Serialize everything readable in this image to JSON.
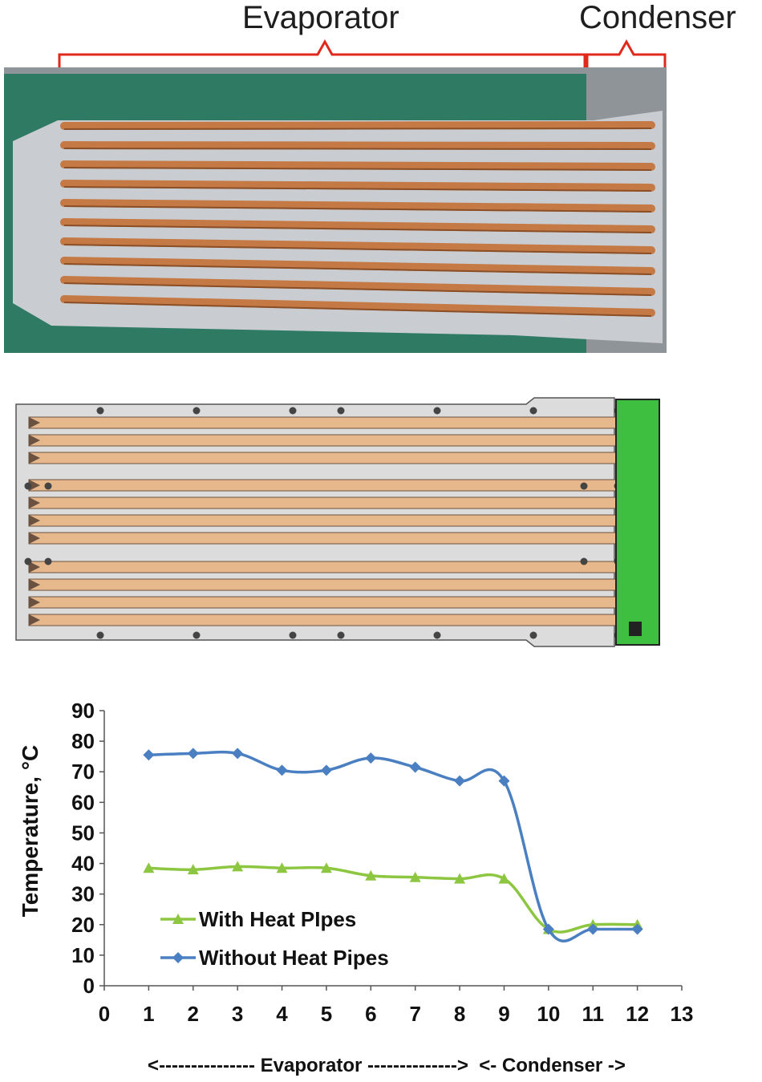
{
  "figure": {
    "evaporator_label": "Evaporator",
    "condenser_label": "Condenser",
    "bracket_color": "#e0281c",
    "photo_colors": {
      "mat": "#2f7a62",
      "plate": "#c9ccd0",
      "pipe": "#c57a45",
      "backdrop": "#8f9498"
    },
    "schematic_colors": {
      "frame": "#dcdcdc",
      "pipe": "#e7b88b",
      "condenser": "#3fbf3f"
    }
  },
  "chart_data": {
    "type": "line",
    "title": "",
    "xlabel": "<--------------- Evaporator -------------->  <- Condenser ->",
    "ylabel": "Temperature, °C",
    "xlim": [
      0,
      13
    ],
    "ylim": [
      0,
      90
    ],
    "xticks": [
      0,
      1,
      2,
      3,
      4,
      5,
      6,
      7,
      8,
      9,
      10,
      11,
      12,
      13
    ],
    "yticks": [
      0,
      10,
      20,
      30,
      40,
      50,
      60,
      70,
      80,
      90
    ],
    "grid": false,
    "legend_position": "bottom-left",
    "series": [
      {
        "name": "With Heat PIpes",
        "color": "#8dc641",
        "marker": "triangle",
        "x": [
          1,
          2,
          3,
          4,
          5,
          6,
          7,
          8,
          9,
          10,
          11,
          12
        ],
        "y": [
          38.5,
          38,
          39,
          38.5,
          38.5,
          36,
          35.5,
          35,
          35,
          18.5,
          20,
          20
        ]
      },
      {
        "name": "Without Heat Pipes",
        "color": "#4a7fc1",
        "marker": "diamond",
        "x": [
          1,
          2,
          3,
          4,
          5,
          6,
          7,
          8,
          9,
          10,
          11,
          12
        ],
        "y": [
          75.5,
          76,
          76,
          70.5,
          70.5,
          74.5,
          71.5,
          67,
          67,
          18.5,
          18.5,
          18.5
        ]
      }
    ]
  }
}
